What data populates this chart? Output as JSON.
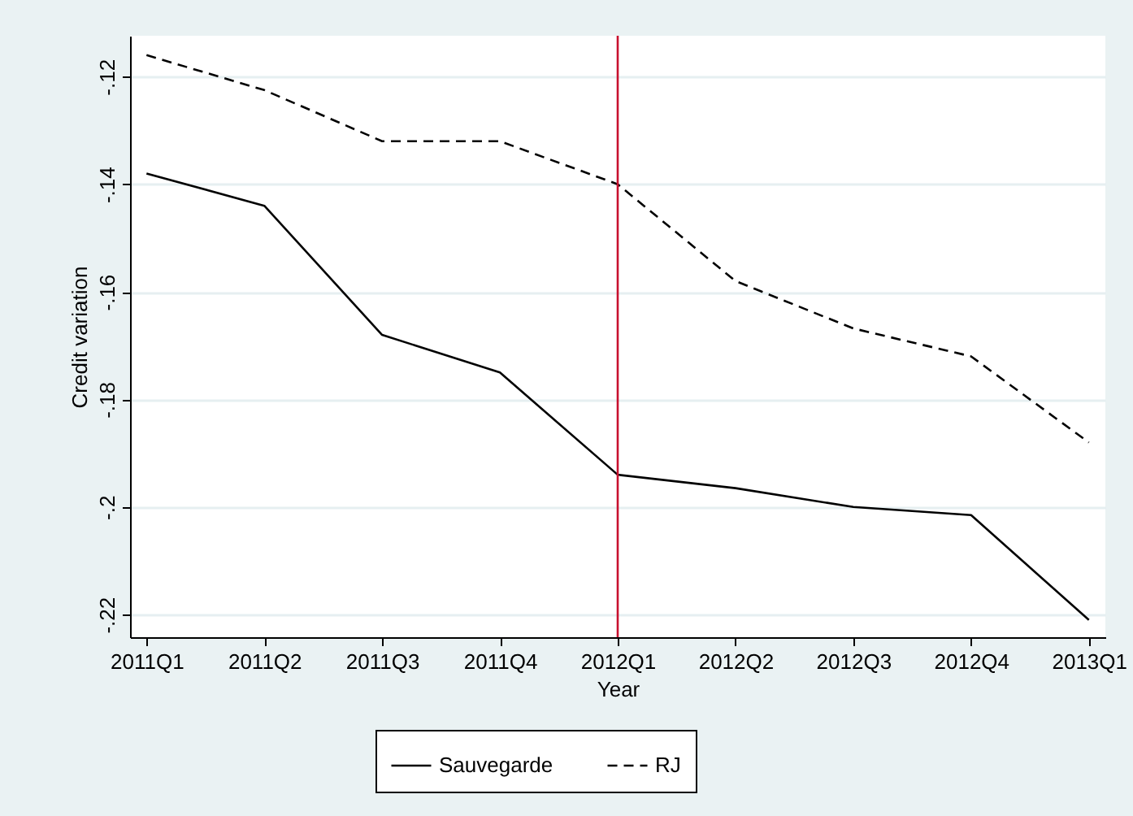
{
  "chart_data": {
    "type": "line",
    "xlabel": "Year",
    "ylabel": "Credit variation",
    "categories": [
      "2011Q1",
      "2011Q2",
      "2011Q3",
      "2011Q4",
      "2012Q1",
      "2012Q2",
      "2012Q3",
      "2012Q4",
      "2013Q1"
    ],
    "series": [
      {
        "name": "Sauvegarde",
        "color": "#000000",
        "line_style": "solid",
        "values": [
          -0.138,
          -0.144,
          -0.168,
          -0.175,
          -0.194,
          -0.1965,
          -0.2,
          -0.2015,
          -0.221
        ]
      },
      {
        "name": "RJ",
        "color": "#000000",
        "line_style": "dashed",
        "values": [
          -0.116,
          -0.1225,
          -0.132,
          -0.132,
          -0.14,
          -0.158,
          -0.1668,
          -0.172,
          -0.188
        ]
      }
    ],
    "ylim": [
      -0.2242,
      -0.1124
    ],
    "yticks": [
      {
        "value": -0.12,
        "label": "-.12"
      },
      {
        "value": -0.14,
        "label": "-.14"
      },
      {
        "value": -0.16,
        "label": "-.16"
      },
      {
        "value": -0.18,
        "label": "-.18"
      },
      {
        "value": -0.2,
        "label": "-.2"
      },
      {
        "value": -0.22,
        "label": "-.22"
      }
    ],
    "ref_lines": [
      {
        "axis": "x",
        "value": "2012Q1",
        "color": "#c8102e"
      }
    ],
    "grid": "y",
    "legend": "bottom",
    "marker": "none"
  }
}
